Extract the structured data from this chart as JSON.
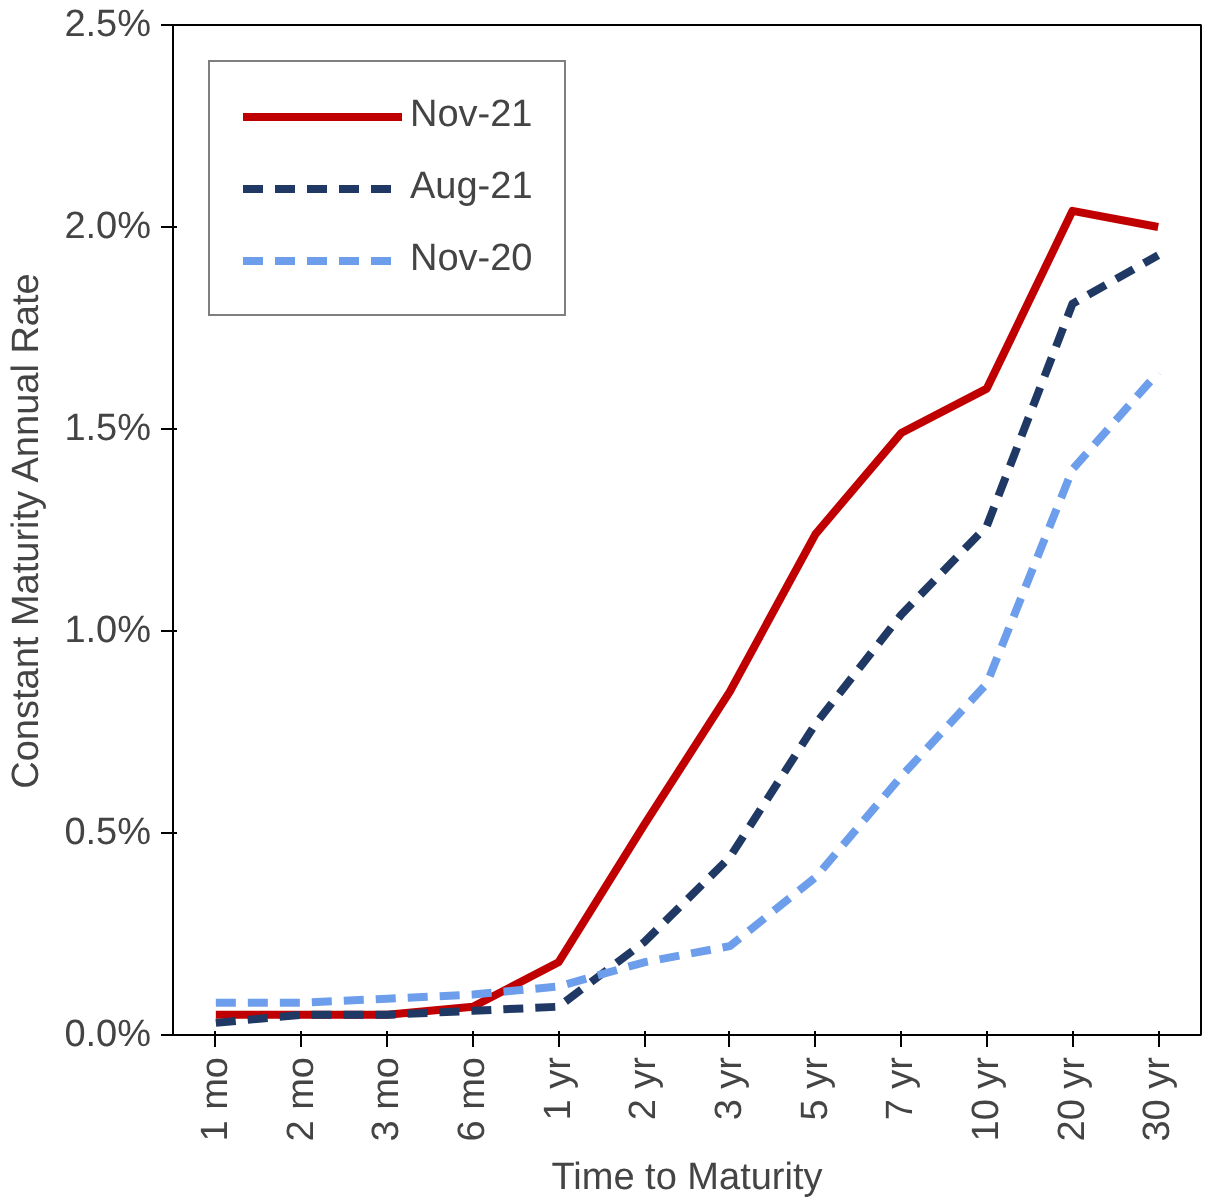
{
  "chart_data": {
    "type": "line",
    "xlabel": "Time to Maturity",
    "ylabel": "Constant Maturity Annual Rate",
    "categories": [
      "1 mo",
      "2 mo",
      "3 mo",
      "6 mo",
      "1 yr",
      "2 yr",
      "3 yr",
      "5 yr",
      "7 yr",
      "10 yr",
      "20 yr",
      "30 yr"
    ],
    "series": [
      {
        "name": "Nov-21",
        "color": "#c00000",
        "line_style": "solid",
        "values": [
          0.05,
          0.05,
          0.05,
          0.07,
          0.18,
          0.52,
          0.85,
          1.24,
          1.49,
          1.6,
          2.04,
          2.0
        ]
      },
      {
        "name": "Aug-21",
        "color": "#1f3864",
        "line_style": "dashed",
        "values": [
          0.03,
          0.05,
          0.05,
          0.06,
          0.07,
          0.23,
          0.44,
          0.77,
          1.04,
          1.26,
          1.81,
          1.93
        ]
      },
      {
        "name": "Nov-20",
        "color": "#6d9eeb",
        "line_style": "dashed",
        "values": [
          0.08,
          0.08,
          0.09,
          0.1,
          0.12,
          0.18,
          0.22,
          0.39,
          0.64,
          0.87,
          1.4,
          1.64
        ]
      }
    ],
    "ylim": [
      0,
      2.5
    ],
    "yticks": [
      {
        "value": 0,
        "label": "0.0%"
      },
      {
        "value": 0.5,
        "label": "0.5%"
      },
      {
        "value": 1.0,
        "label": "1.0%"
      },
      {
        "value": 1.5,
        "label": "1.5%"
      },
      {
        "value": 2.0,
        "label": "2.0%"
      },
      {
        "value": 2.5,
        "label": "2.5%"
      }
    ],
    "grid": false,
    "legend": "top left"
  }
}
